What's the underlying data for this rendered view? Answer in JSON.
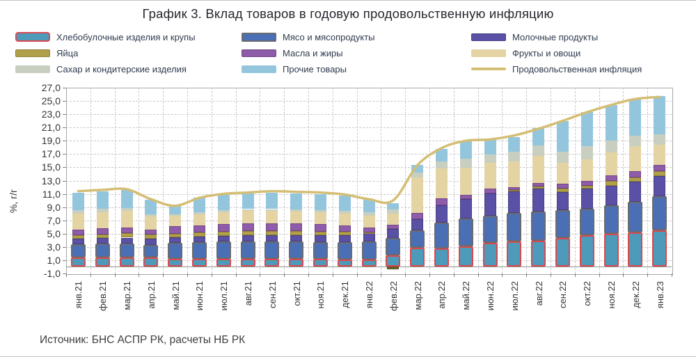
{
  "page": {
    "source": "Источник: БНС АСПР РК, расчеты НБ РК"
  },
  "chart_data": {
    "type": "bar",
    "subtype": "stacked-bars-with-line-overlay",
    "title": "График 3. Вклад товаров в годовую продовольственную инфляцию",
    "ylabel": "%, г/г",
    "ylim": [
      -1.0,
      27.0
    ],
    "ytick_step": 2.0,
    "grid": "dashed horizontal and vertical",
    "legend_position": "top, 3 columns",
    "categories": [
      "янв.21",
      "фев.21",
      "мар.21",
      "апр.21",
      "май.21",
      "июн.21",
      "июл.21",
      "авг.21",
      "сен.21",
      "окт.21",
      "ноя.21",
      "дек.21",
      "янв.22",
      "фев.22",
      "мар.22",
      "апр.22",
      "май.22",
      "июн.22",
      "июл.22",
      "авг.22",
      "сен.22",
      "окт.22",
      "ноя.22",
      "дек.22",
      "янв.23"
    ],
    "series": [
      {
        "name": "Хлебобулочные изделия и крупы",
        "color": "#4E9ABB",
        "border": "#D9494E",
        "values": [
          1.4,
          1.4,
          1.45,
          1.4,
          1.2,
          1.2,
          1.2,
          1.2,
          1.2,
          1.2,
          1.15,
          1.1,
          1.1,
          1.7,
          2.9,
          2.75,
          3.1,
          3.6,
          3.8,
          3.95,
          4.4,
          4.8,
          5.0,
          5.2,
          5.5
        ]
      },
      {
        "name": "Мясо и мясопродукты",
        "color": "#4A6FB5",
        "border": "#6A6B70",
        "values": [
          2.0,
          2.1,
          2.1,
          1.95,
          2.45,
          2.5,
          2.6,
          2.65,
          2.65,
          2.6,
          2.6,
          2.6,
          2.75,
          2.7,
          2.6,
          3.9,
          4.15,
          4.15,
          4.3,
          4.35,
          4.1,
          4.0,
          4.3,
          4.65,
          5.1
        ]
      },
      {
        "name": "Молочные продукты",
        "color": "#5A50A5",
        "border": "#474080",
        "values": [
          0.8,
          0.8,
          0.85,
          0.9,
          0.85,
          0.9,
          0.9,
          0.9,
          0.95,
          1.0,
          1.0,
          1.05,
          1.2,
          1.3,
          1.7,
          2.6,
          2.95,
          3.3,
          3.3,
          3.45,
          2.8,
          2.95,
          2.95,
          2.95,
          3.1
        ]
      },
      {
        "name": "Яйца",
        "color": "#B1A04A",
        "border": "#8F8137",
        "values": [
          0.55,
          0.6,
          0.65,
          0.6,
          0.5,
          0.55,
          0.6,
          0.6,
          0.6,
          0.6,
          0.55,
          0.5,
          0.15,
          -0.35,
          0.0,
          0.0,
          0.0,
          0.0,
          0.15,
          0.35,
          0.5,
          0.45,
          0.7,
          0.7,
          0.7
        ]
      },
      {
        "name": "Масла и жиры",
        "color": "#8E5CA9",
        "border": "#714687",
        "values": [
          0.9,
          0.9,
          0.9,
          0.8,
          1.15,
          1.1,
          1.15,
          1.2,
          1.2,
          1.15,
          1.1,
          1.0,
          0.7,
          0.6,
          0.9,
          1.1,
          0.7,
          0.75,
          0.5,
          0.5,
          0.75,
          0.75,
          0.85,
          0.95,
          1.0
        ]
      },
      {
        "name": "Фрукты и овощи",
        "color": "#E4D4A3",
        "border": "#E4D4A3",
        "values": [
          2.4,
          2.45,
          2.5,
          1.9,
          1.6,
          1.7,
          1.8,
          1.85,
          1.8,
          1.8,
          1.8,
          1.8,
          1.8,
          1.75,
          5.4,
          4.5,
          4.0,
          3.9,
          3.85,
          4.15,
          3.1,
          3.3,
          3.45,
          3.7,
          3.0
        ]
      },
      {
        "name": "Сахар и кондитерские изделия",
        "color": "#C9CFC0",
        "border": "#C9CFC0",
        "values": [
          0.5,
          0.5,
          0.45,
          0.4,
          0.2,
          0.25,
          0.3,
          0.3,
          0.3,
          0.3,
          0.35,
          0.4,
          0.5,
          0.6,
          0.7,
          1.05,
          1.4,
          1.2,
          1.4,
          1.55,
          1.75,
          1.9,
          1.75,
          1.65,
          1.6
        ]
      },
      {
        "name": "Прочие товары",
        "color": "#93C6DD",
        "border": "#93C6DD",
        "values": [
          2.6,
          2.65,
          2.7,
          2.15,
          1.3,
          2.2,
          2.35,
          2.4,
          2.5,
          2.45,
          2.4,
          2.3,
          1.9,
          0.9,
          1.2,
          1.9,
          2.7,
          2.3,
          2.3,
          2.6,
          4.6,
          5.15,
          5.4,
          5.45,
          5.7
        ]
      }
    ],
    "line": {
      "name": "Продовольственная инфляция",
      "color": "#D4BE74",
      "values": [
        11.4,
        11.6,
        11.7,
        10.2,
        9.2,
        10.4,
        11.0,
        11.2,
        11.4,
        11.3,
        11.2,
        10.9,
        10.2,
        10.0,
        15.3,
        17.9,
        19.0,
        19.2,
        19.8,
        20.8,
        22.0,
        23.3,
        24.4,
        25.3,
        25.6
      ]
    }
  }
}
